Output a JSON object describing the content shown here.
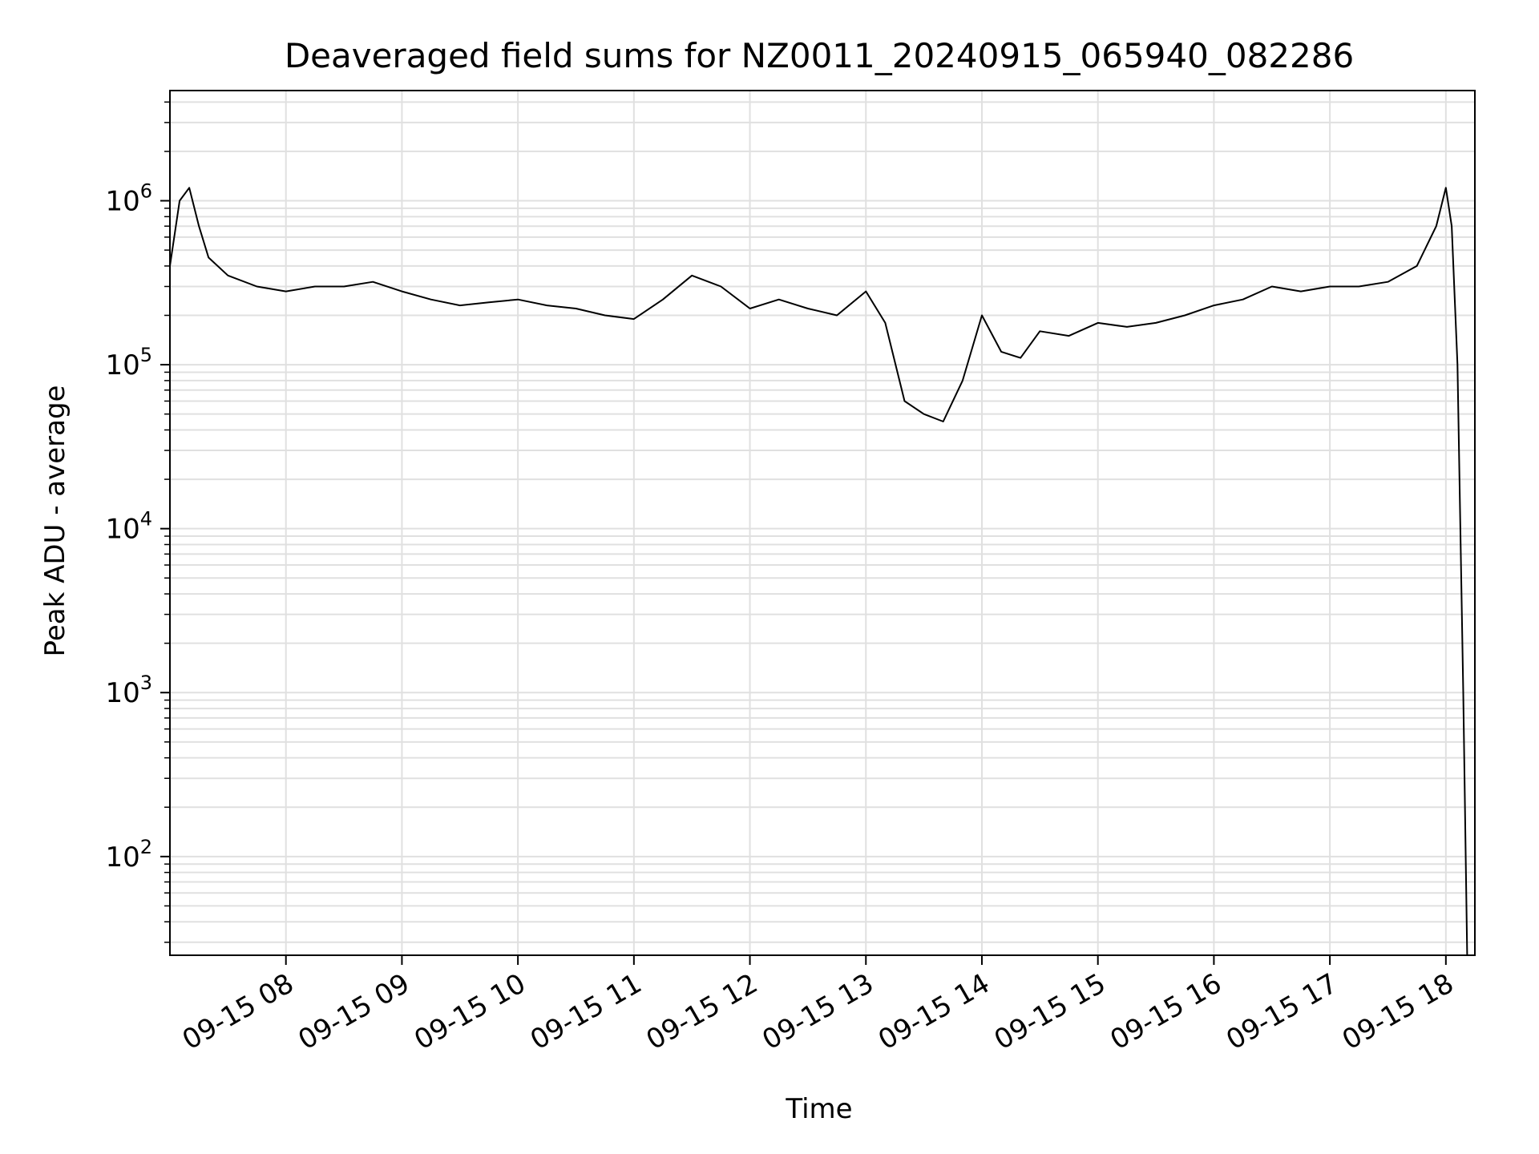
{
  "chart_data": {
    "type": "line",
    "title": "Deaveraged field sums for NZ0011_20240915_065940_082286",
    "xlabel": "Time",
    "ylabel": "Peak ADU - average",
    "y_scale": "log",
    "ylim": [
      25,
      4700000
    ],
    "xlim": [
      "2024-09-15 07:00",
      "2024-09-15 18:15"
    ],
    "x_ticks": [
      "2024-09-15 08:00",
      "2024-09-15 09:00",
      "2024-09-15 10:00",
      "2024-09-15 11:00",
      "2024-09-15 12:00",
      "2024-09-15 13:00",
      "2024-09-15 14:00",
      "2024-09-15 15:00",
      "2024-09-15 16:00",
      "2024-09-15 17:00",
      "2024-09-15 18:00"
    ],
    "x_tick_labels": [
      "09-15 08",
      "09-15 09",
      "09-15 10",
      "09-15 11",
      "09-15 12",
      "09-15 13",
      "09-15 14",
      "09-15 15",
      "09-15 16",
      "09-15 17",
      "09-15 18"
    ],
    "y_ticks": [
      100,
      1000,
      10000,
      100000,
      1000000
    ],
    "y_tick_labels": [
      {
        "base": "10",
        "exp": "2"
      },
      {
        "base": "10",
        "exp": "3"
      },
      {
        "base": "10",
        "exp": "4"
      },
      {
        "base": "10",
        "exp": "5"
      },
      {
        "base": "10",
        "exp": "6"
      }
    ],
    "grid": true,
    "series_color": "#000000",
    "grid_color": "#e0e0e0",
    "series": [
      {
        "x": [
          "2024-09-15 07:00",
          "2024-09-15 07:05",
          "2024-09-15 07:10",
          "2024-09-15 07:15",
          "2024-09-15 07:20",
          "2024-09-15 07:30",
          "2024-09-15 07:45",
          "2024-09-15 08:00",
          "2024-09-15 08:15",
          "2024-09-15 08:30",
          "2024-09-15 08:45",
          "2024-09-15 09:00",
          "2024-09-15 09:15",
          "2024-09-15 09:30",
          "2024-09-15 09:45",
          "2024-09-15 10:00",
          "2024-09-15 10:15",
          "2024-09-15 10:30",
          "2024-09-15 10:45",
          "2024-09-15 11:00",
          "2024-09-15 11:15",
          "2024-09-15 11:30",
          "2024-09-15 11:45",
          "2024-09-15 12:00",
          "2024-09-15 12:15",
          "2024-09-15 12:30",
          "2024-09-15 12:45",
          "2024-09-15 13:00",
          "2024-09-15 13:10",
          "2024-09-15 13:20",
          "2024-09-15 13:30",
          "2024-09-15 13:40",
          "2024-09-15 13:50",
          "2024-09-15 14:00",
          "2024-09-15 14:10",
          "2024-09-15 14:20",
          "2024-09-15 14:30",
          "2024-09-15 14:45",
          "2024-09-15 15:00",
          "2024-09-15 15:15",
          "2024-09-15 15:30",
          "2024-09-15 15:45",
          "2024-09-15 16:00",
          "2024-09-15 16:15",
          "2024-09-15 16:30",
          "2024-09-15 16:45",
          "2024-09-15 17:00",
          "2024-09-15 17:15",
          "2024-09-15 17:30",
          "2024-09-15 17:45",
          "2024-09-15 17:55",
          "2024-09-15 18:00",
          "2024-09-15 18:03",
          "2024-09-15 18:06",
          "2024-09-15 18:09",
          "2024-09-15 18:11"
        ],
        "y": [
          400000,
          1000000,
          1200000,
          700000,
          450000,
          350000,
          300000,
          280000,
          300000,
          300000,
          320000,
          280000,
          250000,
          230000,
          240000,
          250000,
          230000,
          220000,
          200000,
          190000,
          250000,
          350000,
          300000,
          220000,
          250000,
          220000,
          200000,
          280000,
          180000,
          60000,
          50000,
          45000,
          80000,
          200000,
          120000,
          110000,
          160000,
          150000,
          180000,
          170000,
          180000,
          200000,
          230000,
          250000,
          300000,
          280000,
          300000,
          300000,
          320000,
          400000,
          700000,
          1200000,
          700000,
          100000,
          1000,
          25
        ]
      }
    ]
  }
}
